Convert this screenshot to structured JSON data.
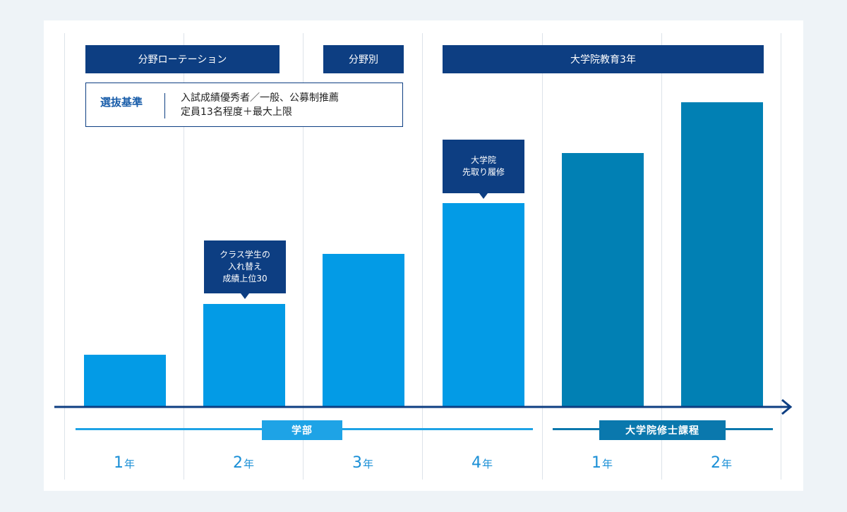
{
  "header_boxes": {
    "rotation": "分野ローテーション",
    "field": "分野別",
    "graduate": "大学院教育3年"
  },
  "criteria": {
    "label": "選抜基準",
    "line1": "入試成績優秀者／一般、公募制推薦",
    "line2": "定員13名程度＋最大上限"
  },
  "callouts": {
    "class_swap": "クラス学生の\n入れ替え\n成績上位30",
    "early_graduate": "大学院\n先取り履修"
  },
  "program_labels": {
    "undergrad": "学部",
    "masters": "大学院修士課程"
  },
  "years": [
    {
      "num": "1",
      "unit": "年"
    },
    {
      "num": "2",
      "unit": "年"
    },
    {
      "num": "3",
      "unit": "年"
    },
    {
      "num": "4",
      "unit": "年"
    },
    {
      "num": "1",
      "unit": "年"
    },
    {
      "num": "2",
      "unit": "年"
    }
  ],
  "bars": [
    {
      "level": 1,
      "program": "undergrad"
    },
    {
      "level": 2,
      "program": "undergrad"
    },
    {
      "level": 3,
      "program": "undergrad"
    },
    {
      "level": 4,
      "program": "undergrad"
    },
    {
      "level": 5,
      "program": "masters"
    },
    {
      "level": 6,
      "program": "masters"
    }
  ],
  "colors": {
    "undergrad_bar": "#039be6",
    "masters_bar": "#0180b4",
    "header_box": "#0d3e82",
    "axis": "#0d3e82",
    "undergrad_line": "#1ea3e6",
    "masters_line": "#0a78ad",
    "year_text": "#1a8fd6"
  }
}
